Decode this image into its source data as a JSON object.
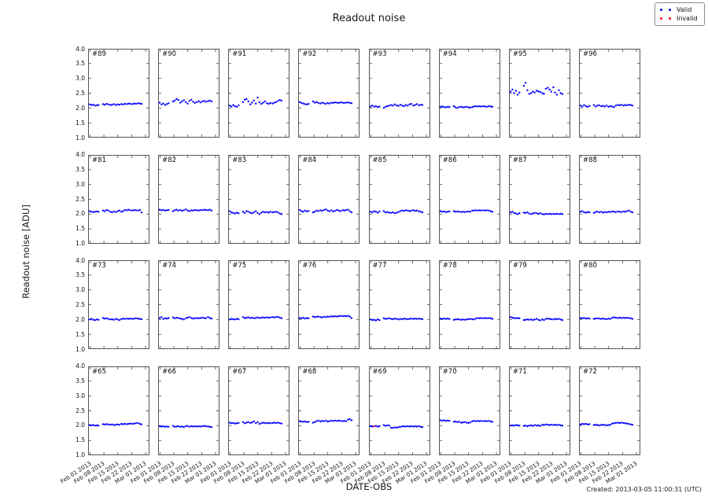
{
  "figure": {
    "title": "Readout noise",
    "ylabel": "Readout noise [ADU]",
    "xlabel": "DATE-OBS",
    "created": "Created: 2013-03-05 11:00:31 (UTC)"
  },
  "legend": {
    "items": [
      {
        "label": "Valid",
        "color": "#0000ff"
      },
      {
        "label": "Invalid",
        "color": "#ff0000"
      }
    ]
  },
  "chart_data": {
    "type": "scatter",
    "title": "Readout noise",
    "xlabel": "DATE-OBS",
    "ylabel": "Readout noise [ADU]",
    "grid": false,
    "legend_position": "top-right",
    "ylim": [
      1.0,
      4.0
    ],
    "yticks": [
      1.0,
      1.5,
      2.0,
      2.5,
      3.0,
      3.5,
      4.0
    ],
    "xlim_days": [
      0,
      31
    ],
    "xtick_days": [
      1,
      8,
      15,
      22,
      29
    ],
    "xtick_labels": [
      "Feb 01 2013",
      "Feb 08 2013",
      "Feb 15 2013",
      "Feb 22 2013",
      "Mar 01 2013"
    ],
    "x_days": [
      0.8,
      1.7,
      2.6,
      3.5,
      4.4,
      5.3,
      7.5,
      8.4,
      9.3,
      10.2,
      11.2,
      12.1,
      13.0,
      14.0,
      14.9,
      15.8,
      16.8,
      17.7,
      18.6,
      19.6,
      20.5,
      21.4,
      22.4,
      23.3,
      24.2,
      25.2,
      26.1,
      27.0
    ],
    "panels": [
      {
        "label": "#89",
        "values": [
          2.12,
          2.1,
          2.11,
          2.08,
          2.09,
          2.1,
          2.13,
          2.11,
          2.14,
          2.12,
          2.1,
          2.11,
          2.13,
          2.1,
          2.12,
          2.11,
          2.13,
          2.12,
          2.14,
          2.13,
          2.15,
          2.14,
          2.13,
          2.15,
          2.14,
          2.16,
          2.15,
          2.14
        ]
      },
      {
        "label": "#90",
        "values": [
          2.18,
          2.12,
          2.15,
          2.1,
          2.13,
          2.16,
          2.22,
          2.25,
          2.3,
          2.27,
          2.18,
          2.22,
          2.26,
          2.2,
          2.15,
          2.24,
          2.28,
          2.21,
          2.17,
          2.2,
          2.23,
          2.19,
          2.22,
          2.24,
          2.21,
          2.23,
          2.25,
          2.22
        ]
      },
      {
        "label": "#91",
        "values": [
          2.08,
          2.05,
          2.1,
          2.06,
          2.04,
          2.09,
          2.2,
          2.28,
          2.3,
          2.22,
          2.12,
          2.18,
          2.25,
          2.15,
          2.35,
          2.2,
          2.14,
          2.18,
          2.22,
          2.16,
          2.14,
          2.17,
          2.15,
          2.18,
          2.2,
          2.24,
          2.27,
          2.25
        ]
      },
      {
        "label": "#92",
        "values": [
          2.2,
          2.17,
          2.15,
          2.13,
          2.12,
          2.14,
          2.22,
          2.18,
          2.2,
          2.17,
          2.15,
          2.18,
          2.16,
          2.14,
          2.17,
          2.15,
          2.18,
          2.17,
          2.19,
          2.18,
          2.17,
          2.19,
          2.18,
          2.17,
          2.18,
          2.19,
          2.17,
          2.16
        ]
      },
      {
        "label": "#93",
        "values": [
          2.05,
          2.08,
          2.04,
          2.06,
          2.03,
          2.05,
          2.0,
          2.04,
          2.06,
          2.08,
          2.1,
          2.08,
          2.12,
          2.09,
          2.07,
          2.11,
          2.08,
          2.06,
          2.1,
          2.08,
          2.12,
          2.14,
          2.08,
          2.1,
          2.13,
          2.09,
          2.11,
          2.1
        ]
      },
      {
        "label": "#94",
        "values": [
          2.04,
          2.05,
          2.03,
          2.02,
          2.04,
          2.03,
          2.06,
          2.02,
          2.0,
          2.03,
          2.04,
          2.02,
          2.03,
          2.04,
          2.02,
          2.01,
          2.03,
          2.05,
          2.06,
          2.05,
          2.06,
          2.05,
          2.06,
          2.05,
          2.04,
          2.06,
          2.05,
          2.04
        ]
      },
      {
        "label": "#95",
        "values": [
          2.55,
          2.62,
          2.5,
          2.58,
          2.45,
          2.52,
          2.75,
          2.85,
          2.6,
          2.48,
          2.5,
          2.55,
          2.52,
          2.58,
          2.56,
          2.54,
          2.5,
          2.48,
          2.65,
          2.68,
          2.62,
          2.55,
          2.7,
          2.52,
          2.45,
          2.6,
          2.5,
          2.47
        ]
      },
      {
        "label": "#96",
        "values": [
          2.08,
          2.05,
          2.1,
          2.06,
          2.04,
          2.07,
          2.1,
          2.05,
          2.08,
          2.09,
          2.06,
          2.07,
          2.05,
          2.08,
          2.04,
          2.06,
          2.05,
          2.03,
          2.08,
          2.1,
          2.09,
          2.11,
          2.08,
          2.1,
          2.09,
          2.11,
          2.1,
          2.08
        ]
      },
      {
        "label": "#81",
        "values": [
          2.1,
          2.08,
          2.07,
          2.08,
          2.09,
          2.08,
          2.12,
          2.1,
          2.14,
          2.12,
          2.08,
          2.06,
          2.09,
          2.07,
          2.1,
          2.12,
          2.08,
          2.1,
          2.14,
          2.13,
          2.15,
          2.13,
          2.12,
          2.14,
          2.13,
          2.12,
          2.14,
          2.06
        ]
      },
      {
        "label": "#82",
        "values": [
          2.15,
          2.13,
          2.14,
          2.12,
          2.13,
          2.14,
          2.1,
          2.13,
          2.15,
          2.12,
          2.14,
          2.11,
          2.13,
          2.16,
          2.12,
          2.1,
          2.13,
          2.12,
          2.14,
          2.13,
          2.12,
          2.14,
          2.13,
          2.15,
          2.14,
          2.13,
          2.15,
          2.12
        ]
      },
      {
        "label": "#83",
        "values": [
          2.1,
          2.06,
          2.04,
          2.02,
          2.05,
          2.03,
          2.08,
          2.04,
          2.1,
          2.08,
          2.05,
          2.03,
          2.06,
          2.1,
          2.04,
          2.0,
          2.05,
          2.08,
          2.06,
          2.07,
          2.05,
          2.08,
          2.06,
          2.07,
          2.08,
          2.06,
          2.02,
          2.0
        ]
      },
      {
        "label": "#84",
        "values": [
          2.14,
          2.1,
          2.08,
          2.12,
          2.09,
          2.11,
          2.06,
          2.08,
          2.12,
          2.1,
          2.13,
          2.11,
          2.14,
          2.16,
          2.12,
          2.1,
          2.13,
          2.09,
          2.11,
          2.14,
          2.12,
          2.1,
          2.13,
          2.12,
          2.14,
          2.15,
          2.1,
          2.06
        ]
      },
      {
        "label": "#85",
        "values": [
          2.08,
          2.06,
          2.1,
          2.08,
          2.05,
          2.09,
          2.1,
          2.06,
          2.07,
          2.05,
          2.04,
          2.06,
          2.03,
          2.05,
          2.07,
          2.1,
          2.12,
          2.11,
          2.13,
          2.12,
          2.1,
          2.12,
          2.13,
          2.11,
          2.12,
          2.1,
          2.08,
          2.06
        ]
      },
      {
        "label": "#86",
        "values": [
          2.1,
          2.08,
          2.09,
          2.07,
          2.08,
          2.09,
          2.1,
          2.08,
          2.09,
          2.08,
          2.07,
          2.08,
          2.07,
          2.08,
          2.09,
          2.08,
          2.12,
          2.12,
          2.13,
          2.12,
          2.13,
          2.12,
          2.13,
          2.12,
          2.13,
          2.12,
          2.1,
          2.08
        ]
      },
      {
        "label": "#87",
        "values": [
          2.06,
          2.08,
          2.04,
          2.02,
          2.0,
          2.03,
          2.05,
          2.04,
          2.06,
          2.02,
          2.0,
          2.02,
          2.04,
          2.03,
          2.01,
          2.03,
          2.0,
          1.99,
          2.01,
          2.0,
          2.01,
          2.0,
          2.01,
          2.0,
          2.01,
          2.0,
          2.01,
          2.0
        ]
      },
      {
        "label": "#88",
        "values": [
          2.08,
          2.1,
          2.06,
          2.05,
          2.07,
          2.06,
          2.04,
          2.07,
          2.09,
          2.06,
          2.08,
          2.05,
          2.07,
          2.06,
          2.08,
          2.07,
          2.09,
          2.08,
          2.07,
          2.09,
          2.08,
          2.07,
          2.09,
          2.08,
          2.1,
          2.12,
          2.08,
          2.06
        ]
      },
      {
        "label": "#73",
        "values": [
          2.0,
          2.02,
          1.99,
          1.98,
          2.0,
          1.99,
          2.05,
          2.03,
          2.04,
          2.02,
          2.0,
          2.01,
          1.99,
          2.02,
          2.0,
          1.98,
          2.01,
          2.03,
          2.02,
          2.03,
          2.02,
          2.03,
          2.02,
          2.03,
          2.04,
          2.03,
          2.02,
          2.01
        ]
      },
      {
        "label": "#74",
        "values": [
          2.05,
          2.08,
          2.02,
          2.04,
          2.03,
          2.05,
          2.07,
          2.04,
          2.06,
          2.05,
          2.03,
          2.02,
          2.0,
          2.04,
          2.06,
          2.08,
          2.05,
          2.03,
          2.04,
          2.05,
          2.04,
          2.05,
          2.06,
          2.05,
          2.04,
          2.08,
          2.05,
          2.03
        ]
      },
      {
        "label": "#75",
        "values": [
          2.0,
          2.02,
          2.01,
          2.0,
          2.02,
          2.01,
          2.08,
          2.05,
          2.06,
          2.07,
          2.05,
          2.06,
          2.04,
          2.05,
          2.07,
          2.05,
          2.06,
          2.07,
          2.06,
          2.07,
          2.06,
          2.07,
          2.08,
          2.07,
          2.08,
          2.09,
          2.06,
          2.04
        ]
      },
      {
        "label": "#76",
        "values": [
          2.05,
          2.04,
          2.06,
          2.03,
          2.05,
          2.04,
          2.1,
          2.08,
          2.09,
          2.1,
          2.08,
          2.07,
          2.09,
          2.08,
          2.1,
          2.09,
          2.11,
          2.1,
          2.11,
          2.1,
          2.11,
          2.12,
          2.11,
          2.12,
          2.11,
          2.12,
          2.1,
          2.05
        ]
      },
      {
        "label": "#77",
        "values": [
          2.0,
          1.98,
          1.99,
          1.97,
          2.0,
          1.98,
          2.04,
          2.02,
          2.03,
          2.04,
          2.02,
          2.01,
          2.03,
          2.02,
          2.0,
          2.02,
          2.01,
          2.03,
          2.02,
          2.01,
          2.02,
          2.03,
          2.02,
          2.03,
          2.02,
          2.03,
          2.02,
          2.01
        ]
      },
      {
        "label": "#78",
        "values": [
          2.03,
          2.02,
          2.03,
          2.02,
          2.03,
          2.02,
          1.99,
          2.0,
          2.01,
          2.0,
          1.99,
          2.0,
          1.99,
          2.0,
          2.01,
          2.02,
          2.01,
          2.0,
          2.03,
          2.05,
          2.04,
          2.05,
          2.04,
          2.05,
          2.04,
          2.05,
          2.04,
          2.02
        ]
      },
      {
        "label": "#79",
        "values": [
          2.08,
          2.06,
          2.05,
          2.04,
          2.05,
          2.04,
          1.98,
          1.99,
          2.0,
          1.99,
          2.0,
          1.98,
          2.0,
          2.02,
          1.99,
          1.97,
          2.0,
          1.98,
          2.02,
          2.03,
          2.02,
          2.01,
          2.0,
          2.02,
          2.01,
          2.02,
          2.0,
          1.98
        ]
      },
      {
        "label": "#80",
        "values": [
          2.05,
          2.04,
          2.05,
          2.03,
          2.04,
          2.03,
          2.02,
          2.03,
          2.04,
          2.03,
          2.02,
          2.03,
          2.02,
          2.01,
          2.03,
          2.02,
          2.06,
          2.07,
          2.06,
          2.05,
          2.06,
          2.05,
          2.06,
          2.05,
          2.06,
          2.05,
          2.04,
          2.02
        ]
      },
      {
        "label": "#65",
        "values": [
          2.02,
          2.01,
          2.02,
          2.0,
          2.01,
          2.0,
          2.05,
          2.04,
          2.05,
          2.04,
          2.03,
          2.04,
          2.02,
          2.03,
          2.04,
          2.03,
          2.06,
          2.05,
          2.06,
          2.05,
          2.06,
          2.07,
          2.06,
          2.07,
          2.08,
          2.09,
          2.06,
          2.04
        ]
      },
      {
        "label": "#66",
        "values": [
          1.98,
          1.97,
          1.98,
          1.96,
          1.97,
          1.96,
          1.99,
          1.96,
          1.97,
          1.98,
          1.96,
          1.97,
          1.95,
          1.98,
          1.99,
          1.96,
          1.98,
          1.97,
          1.98,
          1.97,
          1.98,
          1.97,
          1.98,
          1.99,
          1.98,
          1.97,
          1.96,
          1.95
        ]
      },
      {
        "label": "#67",
        "values": [
          2.1,
          2.08,
          2.09,
          2.07,
          2.08,
          2.09,
          2.12,
          2.08,
          2.1,
          2.12,
          2.09,
          2.11,
          2.14,
          2.08,
          2.12,
          2.06,
          2.08,
          2.1,
          2.09,
          2.08,
          2.09,
          2.08,
          2.09,
          2.1,
          2.09,
          2.1,
          2.08,
          2.07
        ]
      },
      {
        "label": "#68",
        "values": [
          2.15,
          2.14,
          2.13,
          2.14,
          2.12,
          2.13,
          2.1,
          2.12,
          2.15,
          2.17,
          2.14,
          2.16,
          2.15,
          2.17,
          2.14,
          2.15,
          2.17,
          2.16,
          2.17,
          2.16,
          2.17,
          2.16,
          2.15,
          2.16,
          2.15,
          2.2,
          2.22,
          2.18
        ]
      },
      {
        "label": "#69",
        "values": [
          1.98,
          1.97,
          1.98,
          1.99,
          1.97,
          1.98,
          2.02,
          1.99,
          2.01,
          2.0,
          1.93,
          1.92,
          1.94,
          1.93,
          1.95,
          1.96,
          1.97,
          1.98,
          1.97,
          1.98,
          1.97,
          1.98,
          1.97,
          1.98,
          1.97,
          1.98,
          1.96,
          1.95
        ],
        "invalid_indices": [
          2
        ]
      },
      {
        "label": "#70",
        "values": [
          2.18,
          2.17,
          2.18,
          2.16,
          2.17,
          2.16,
          2.13,
          2.14,
          2.12,
          2.13,
          2.1,
          2.11,
          2.12,
          2.1,
          2.09,
          2.11,
          2.15,
          2.16,
          2.15,
          2.16,
          2.15,
          2.16,
          2.15,
          2.16,
          2.15,
          2.16,
          2.14,
          2.13
        ]
      },
      {
        "label": "#71",
        "values": [
          2.0,
          2.01,
          2.0,
          2.02,
          2.01,
          2.0,
          1.99,
          2.0,
          1.98,
          2.0,
          2.01,
          1.99,
          2.02,
          2.0,
          2.01,
          1.99,
          2.03,
          2.02,
          2.04,
          2.03,
          2.02,
          2.03,
          2.02,
          2.03,
          2.02,
          2.03,
          2.01,
          2.0
        ]
      },
      {
        "label": "#72",
        "values": [
          2.04,
          2.06,
          2.05,
          2.06,
          2.04,
          2.05,
          2.02,
          2.03,
          2.02,
          2.01,
          2.02,
          2.03,
          2.02,
          2.01,
          2.02,
          2.03,
          2.07,
          2.08,
          2.09,
          2.1,
          2.09,
          2.1,
          2.09,
          2.08,
          2.07,
          2.06,
          2.04,
          2.03
        ]
      }
    ]
  }
}
